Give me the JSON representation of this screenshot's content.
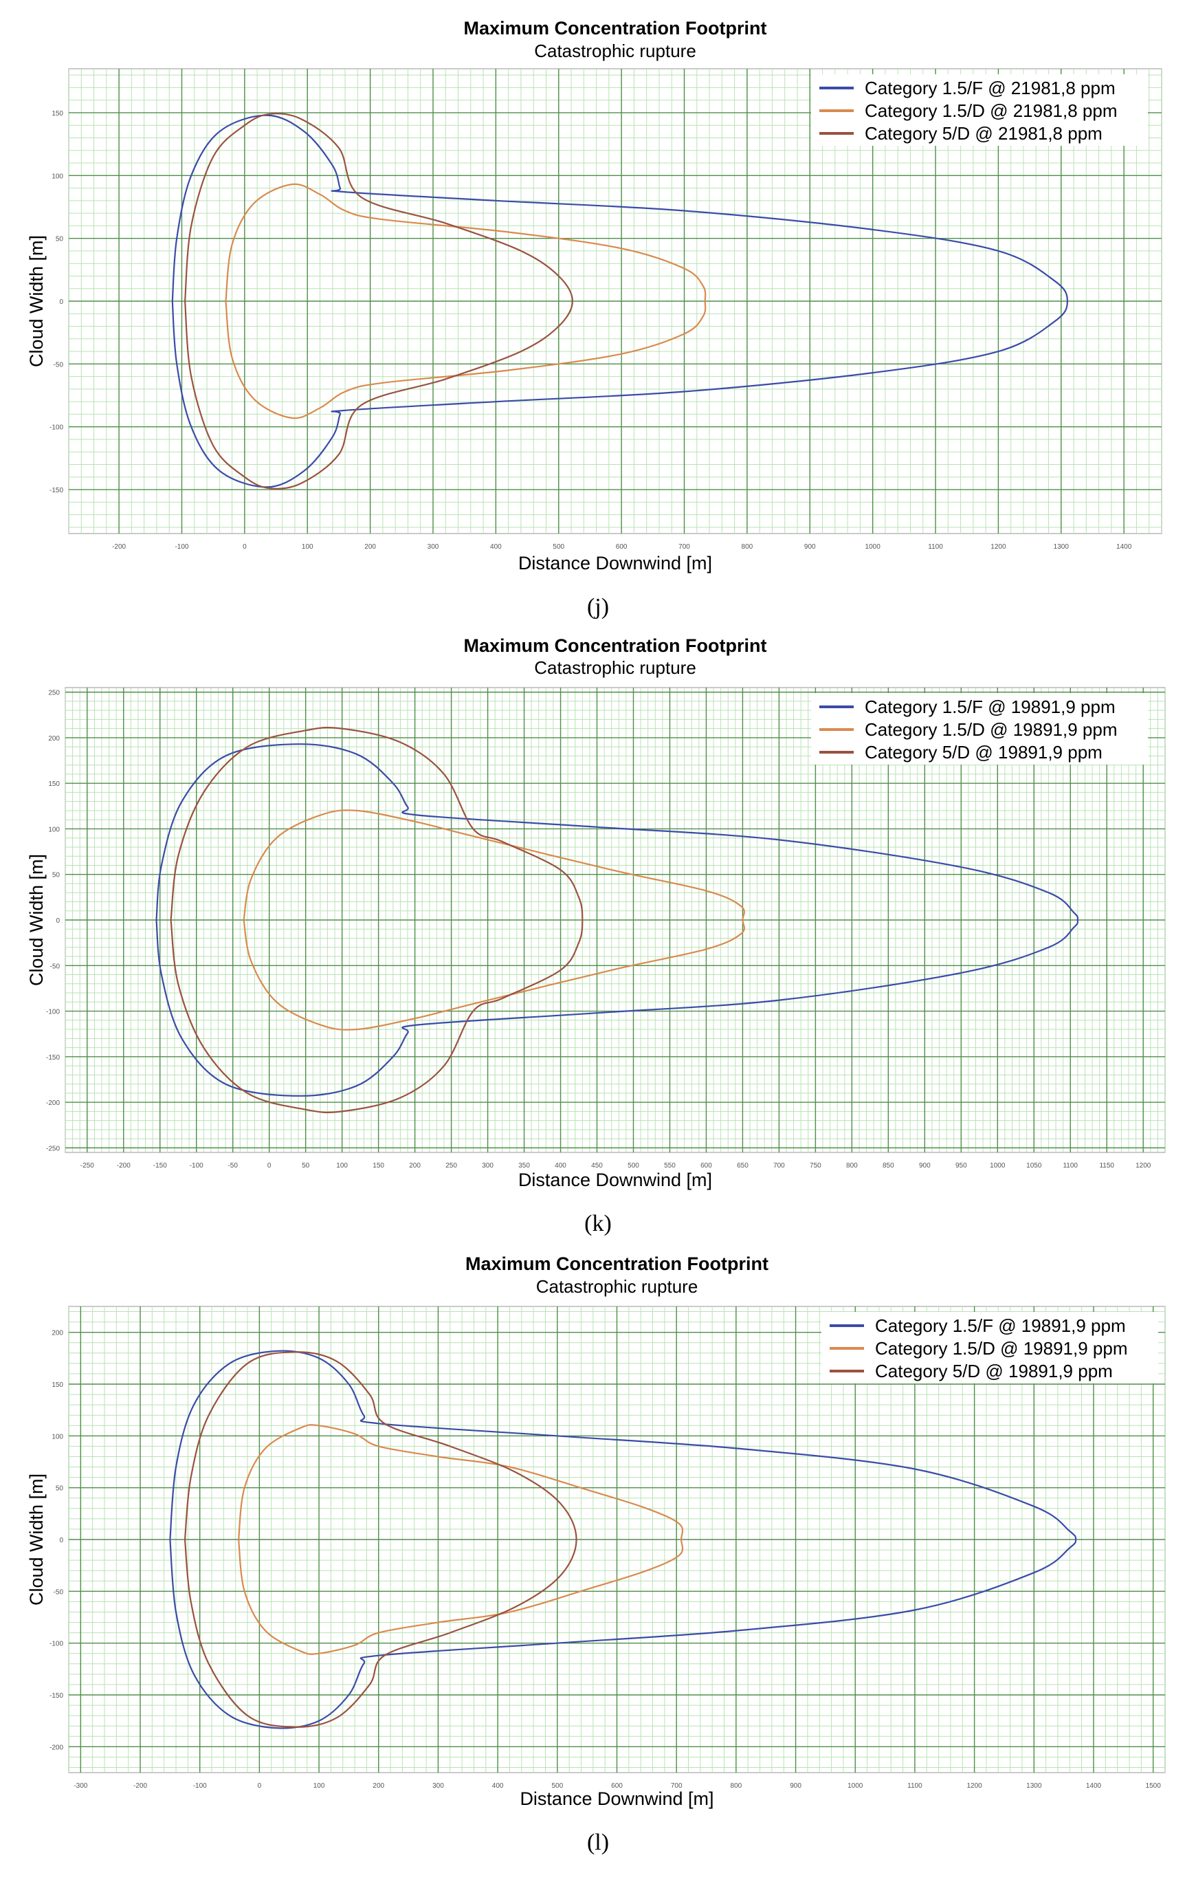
{
  "chart_data": [
    {
      "type": "line",
      "panel_label": "(j)",
      "title": "Maximum Concentration Footprint",
      "subtitle": "Catastrophic rupture",
      "xlabel": "Distance Downwind [m]",
      "ylabel": "Cloud Width [m]",
      "xlim": [
        -280,
        1460
      ],
      "ylim": [
        -185,
        185
      ],
      "x_ticks": [
        -200,
        -100,
        0,
        100,
        200,
        300,
        400,
        500,
        600,
        700,
        800,
        900,
        1000,
        1100,
        1200,
        1300,
        1400
      ],
      "y_ticks": [
        -150,
        -100,
        -50,
        0,
        50,
        100,
        150
      ],
      "legend_position": "top-right",
      "series": [
        {
          "name": "Category 1.5/F @ 21981,8 ppm",
          "color": "#3b4ba8",
          "points": [
            [
              -115,
              0
            ],
            [
              -108,
              50
            ],
            [
              -85,
              100
            ],
            [
              -40,
              135
            ],
            [
              35,
              148
            ],
            [
              95,
              135
            ],
            [
              140,
              108
            ],
            [
              152,
              90
            ],
            [
              158,
              87
            ],
            [
              400,
              80
            ],
            [
              700,
              72
            ],
            [
              1000,
              57
            ],
            [
              1200,
              40
            ],
            [
              1290,
              16
            ],
            [
              1310,
              0
            ]
          ]
        },
        {
          "name": "Category 1.5/D @ 21981,8 ppm",
          "color": "#d98a4e",
          "points": [
            [
              -30,
              0
            ],
            [
              -20,
              45
            ],
            [
              15,
              78
            ],
            [
              75,
              93
            ],
            [
              120,
              85
            ],
            [
              160,
              72
            ],
            [
              220,
              65
            ],
            [
              420,
              55
            ],
            [
              600,
              42
            ],
            [
              700,
              26
            ],
            [
              730,
              12
            ],
            [
              733,
              0
            ]
          ]
        },
        {
          "name": "Category 5/D @ 21981,8 ppm",
          "color": "#9a5240",
          "points": [
            [
              -95,
              0
            ],
            [
              -85,
              60
            ],
            [
              -50,
              115
            ],
            [
              0,
              140
            ],
            [
              40,
              149
            ],
            [
              90,
              145
            ],
            [
              150,
              122
            ],
            [
              185,
              83
            ],
            [
              320,
              62
            ],
            [
              440,
              40
            ],
            [
              500,
              20
            ],
            [
              522,
              0
            ]
          ]
        }
      ]
    },
    {
      "type": "line",
      "panel_label": "(k)",
      "title": "Maximum Concentration Footprint",
      "subtitle": "Catastrophic rupture",
      "xlabel": "Distance Downwind [m]",
      "ylabel": "Cloud Width [m]",
      "xlim": [
        -280,
        1230
      ],
      "ylim": [
        -255,
        255
      ],
      "x_ticks": [
        -250,
        -200,
        -150,
        -100,
        -50,
        0,
        50,
        100,
        150,
        200,
        250,
        300,
        350,
        400,
        450,
        500,
        550,
        600,
        650,
        700,
        750,
        800,
        850,
        900,
        950,
        1000,
        1050,
        1100,
        1150,
        1200
      ],
      "y_ticks": [
        -250,
        -200,
        -150,
        -100,
        -50,
        0,
        50,
        100,
        150,
        200,
        250
      ],
      "legend_position": "top-right",
      "series": [
        {
          "name": "Category 1.5/F @ 19891,9 ppm",
          "color": "#3b4ba8",
          "points": [
            [
              -155,
              0
            ],
            [
              -148,
              60
            ],
            [
              -120,
              130
            ],
            [
              -60,
              180
            ],
            [
              40,
              193
            ],
            [
              120,
              182
            ],
            [
              170,
              150
            ],
            [
              190,
              124
            ],
            [
              205,
              115
            ],
            [
              450,
              102
            ],
            [
              700,
              88
            ],
            [
              950,
              58
            ],
            [
              1070,
              30
            ],
            [
              1105,
              8
            ],
            [
              1110,
              0
            ]
          ]
        },
        {
          "name": "Category 1.5/D @ 19891,9 ppm",
          "color": "#d98a4e",
          "points": [
            [
              -35,
              0
            ],
            [
              -25,
              45
            ],
            [
              10,
              90
            ],
            [
              70,
              115
            ],
            [
              120,
              120
            ],
            [
              200,
              108
            ],
            [
              280,
              92
            ],
            [
              470,
              55
            ],
            [
              600,
              32
            ],
            [
              648,
              15
            ],
            [
              650,
              0
            ]
          ]
        },
        {
          "name": "Category 5/D @ 19891,9 ppm",
          "color": "#9a5240",
          "points": [
            [
              -135,
              0
            ],
            [
              -125,
              70
            ],
            [
              -90,
              140
            ],
            [
              -30,
              190
            ],
            [
              50,
              208
            ],
            [
              100,
              210
            ],
            [
              180,
              195
            ],
            [
              240,
              160
            ],
            [
              280,
              100
            ],
            [
              320,
              86
            ],
            [
              400,
              55
            ],
            [
              425,
              25
            ],
            [
              430,
              0
            ]
          ]
        }
      ]
    },
    {
      "type": "line",
      "panel_label": "(l)",
      "title": "Maximum Concentration Footprint",
      "subtitle": "Catastrophic rupture",
      "xlabel": "Distance Downwind [m]",
      "ylabel": "Cloud Width [m]",
      "xlim": [
        -320,
        1520
      ],
      "ylim": [
        -225,
        225
      ],
      "x_ticks": [
        -300,
        -200,
        -100,
        0,
        100,
        200,
        300,
        400,
        500,
        600,
        700,
        800,
        900,
        1000,
        1100,
        1200,
        1300,
        1400,
        1500
      ],
      "y_ticks": [
        -200,
        -150,
        -100,
        -50,
        0,
        50,
        100,
        150,
        200
      ],
      "legend_position": "top-right",
      "series": [
        {
          "name": "Category 1.5/F @ 19891,9 ppm",
          "color": "#3b4ba8",
          "points": [
            [
              -150,
              0
            ],
            [
              -140,
              70
            ],
            [
              -110,
              130
            ],
            [
              -50,
              170
            ],
            [
              30,
              182
            ],
            [
              100,
              175
            ],
            [
              150,
              150
            ],
            [
              175,
              120
            ],
            [
              200,
              112
            ],
            [
              500,
              100
            ],
            [
              800,
              88
            ],
            [
              1100,
              68
            ],
            [
              1300,
              32
            ],
            [
              1360,
              8
            ],
            [
              1370,
              0
            ]
          ]
        },
        {
          "name": "Category 1.5/D @ 19891,9 ppm",
          "color": "#d98a4e",
          "points": [
            [
              -35,
              0
            ],
            [
              -25,
              50
            ],
            [
              10,
              88
            ],
            [
              70,
              108
            ],
            [
              100,
              110
            ],
            [
              160,
              102
            ],
            [
              200,
              90
            ],
            [
              300,
              80
            ],
            [
              420,
              70
            ],
            [
              550,
              48
            ],
            [
              650,
              30
            ],
            [
              705,
              15
            ],
            [
              708,
              0
            ]
          ]
        },
        {
          "name": "Category 5/D @ 19891,9 ppm",
          "color": "#9a5240",
          "points": [
            [
              -125,
              0
            ],
            [
              -115,
              60
            ],
            [
              -85,
              120
            ],
            [
              -20,
              170
            ],
            [
              60,
              181
            ],
            [
              130,
              172
            ],
            [
              185,
              140
            ],
            [
              210,
              112
            ],
            [
              320,
              90
            ],
            [
              430,
              65
            ],
            [
              505,
              35
            ],
            [
              532,
              0
            ]
          ]
        }
      ]
    }
  ]
}
